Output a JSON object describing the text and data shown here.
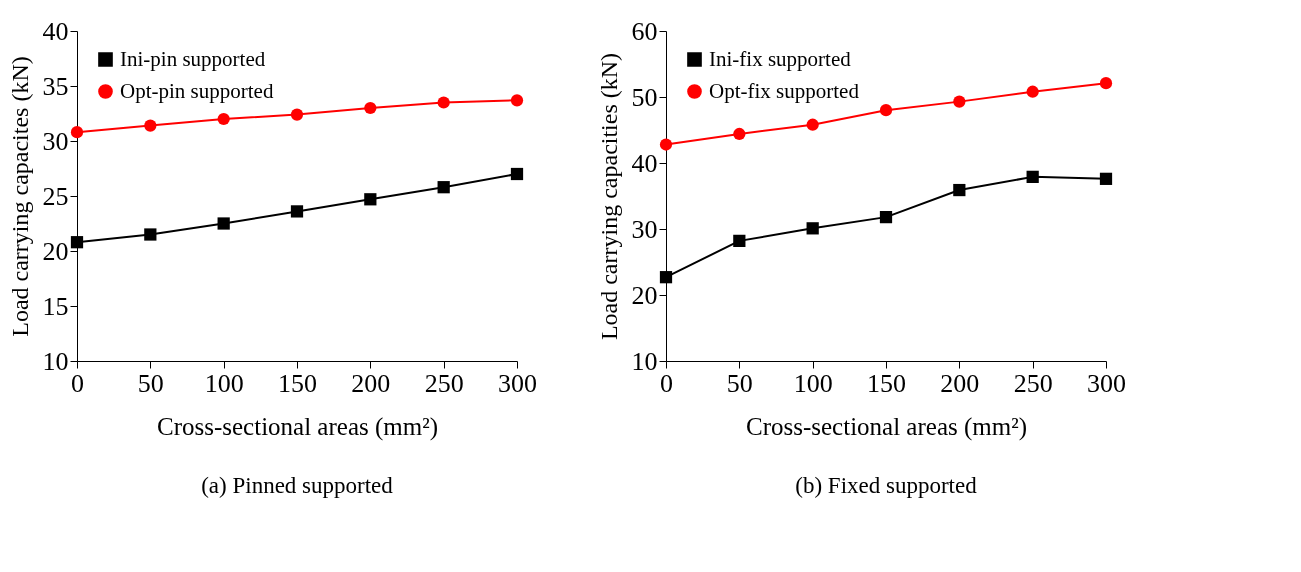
{
  "chart_data": [
    {
      "type": "line",
      "title": "(a)  Pinned supported",
      "xlabel": "Cross-sectional areas (mm²)",
      "ylabel": "Load carrying capacites (kN)",
      "x": [
        0,
        50,
        100,
        150,
        200,
        250,
        300
      ],
      "xlim": [
        0,
        300
      ],
      "xticks": [
        0,
        50,
        100,
        150,
        200,
        250,
        300
      ],
      "ylim": [
        10,
        40
      ],
      "yticks": [
        10,
        15,
        20,
        25,
        30,
        35,
        40
      ],
      "legend": "top left",
      "grid": false,
      "line_style": "solid",
      "series": [
        {
          "name": "Ini-pin supported",
          "color": "#000000",
          "marker": "square",
          "values": [
            20.8,
            21.5,
            22.5,
            23.6,
            24.7,
            25.8,
            27.0
          ]
        },
        {
          "name": "Opt-pin supported",
          "color": "#ff0000",
          "marker": "circle",
          "values": [
            30.8,
            31.4,
            32.0,
            32.4,
            33.0,
            33.5,
            33.7
          ]
        }
      ]
    },
    {
      "type": "line",
      "title": "(b) Fixed supported",
      "xlabel": "Cross-sectional areas (mm²)",
      "ylabel": "Load carrying capacities (kN)",
      "x": [
        0,
        50,
        100,
        150,
        200,
        250,
        300
      ],
      "xlim": [
        0,
        300
      ],
      "xticks": [
        0,
        50,
        100,
        150,
        200,
        250,
        300
      ],
      "ylim": [
        10,
        60
      ],
      "yticks": [
        10,
        20,
        30,
        40,
        50,
        60
      ],
      "legend": "top left",
      "grid": false,
      "line_style": "solid",
      "series": [
        {
          "name": "Ini-fix supported",
          "color": "#000000",
          "marker": "square",
          "values": [
            22.7,
            28.2,
            30.1,
            31.8,
            35.9,
            37.9,
            37.6
          ]
        },
        {
          "name": "Opt-fix supported",
          "color": "#ff0000",
          "marker": "circle",
          "values": [
            42.8,
            44.4,
            45.8,
            48.0,
            49.3,
            50.8,
            52.1
          ]
        }
      ]
    }
  ]
}
